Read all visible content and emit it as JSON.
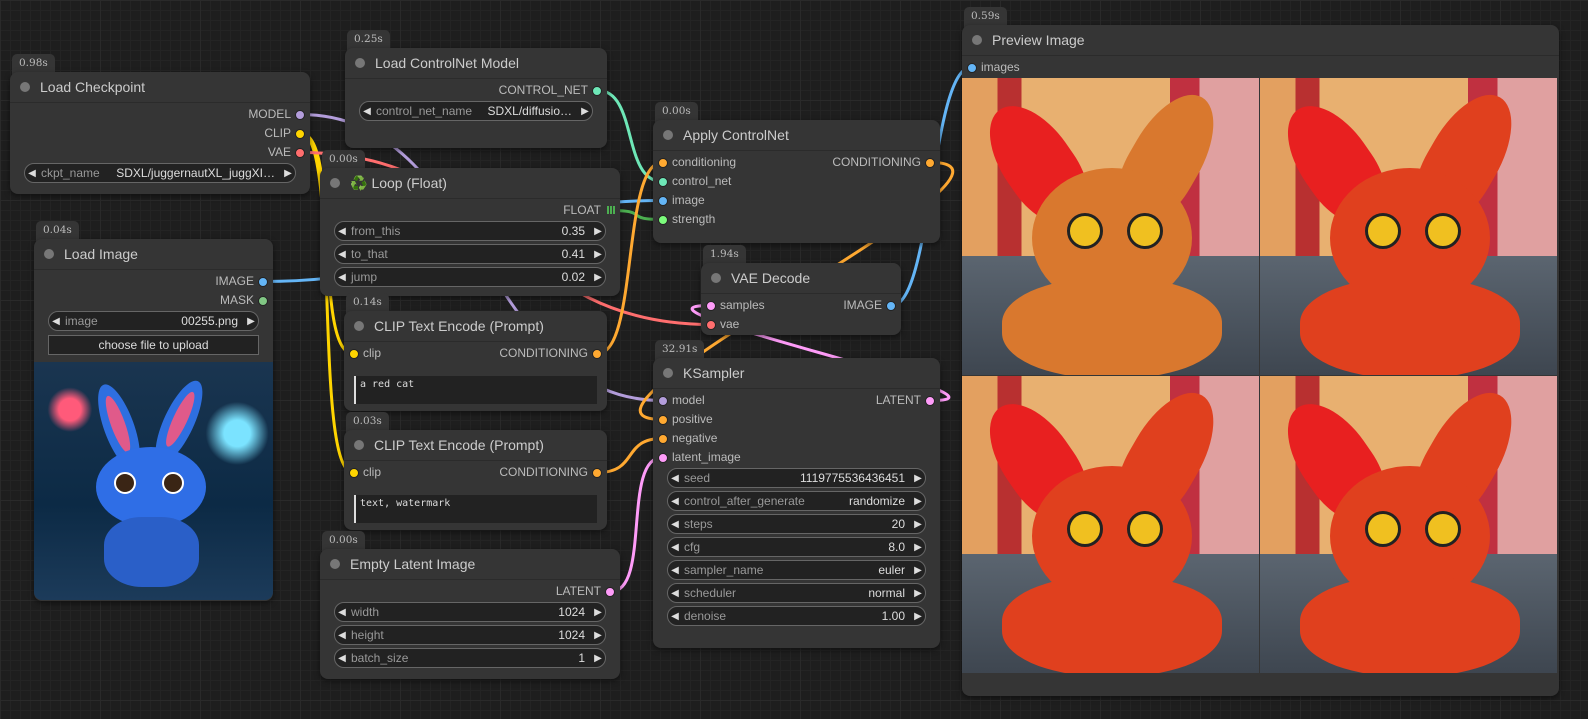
{
  "type_colors": {
    "MODEL": "#b39ddb",
    "CLIP": "#ffd500",
    "VAE": "#ff6e6e",
    "CONTROL_NET": "#6ee7b7",
    "IMAGE": "#64b5f6",
    "MASK": "#81c784",
    "FLOAT": "#4caf50",
    "CONDITIONING": "#ffa931",
    "LATENT": "#ff9cf9",
    "STRENGTH": "#7cfc7c"
  },
  "nodes": [
    {
      "id": "ckpt",
      "title": "Load Checkpoint",
      "time": "0.98s",
      "inputs": [],
      "outputs": [
        {
          "label": "MODEL",
          "type": "MODEL"
        },
        {
          "label": "CLIP",
          "type": "CLIP"
        },
        {
          "label": "VAE",
          "type": "VAE"
        }
      ],
      "widgets": [
        {
          "label": "ckpt_name",
          "value": "SDXL/juggernautXL_juggXI…"
        }
      ]
    },
    {
      "id": "cnload",
      "title": "Load ControlNet Model",
      "time": "0.25s",
      "inputs": [],
      "outputs": [
        {
          "label": "CONTROL_NET",
          "type": "CONTROL_NET"
        }
      ],
      "widgets": [
        {
          "label": "control_net_name",
          "value": "SDXL/diffusio…"
        }
      ]
    },
    {
      "id": "loop",
      "title": "Loop (Float)",
      "icon": "♻️",
      "time": "0.00s",
      "inputs": [],
      "outputs": [
        {
          "label": "FLOAT",
          "type": "FLOAT"
        }
      ],
      "widgets": [
        {
          "label": "from_this",
          "value": "0.35"
        },
        {
          "label": "to_that",
          "value": "0.41"
        },
        {
          "label": "jump",
          "value": "0.02"
        }
      ]
    },
    {
      "id": "loadimg",
      "title": "Load Image",
      "time": "0.04s",
      "inputs": [],
      "outputs": [
        {
          "label": "IMAGE",
          "type": "IMAGE"
        },
        {
          "label": "MASK",
          "type": "MASK"
        }
      ],
      "widgets": [
        {
          "label": "image",
          "value": "00255.png"
        }
      ],
      "button": "choose file to upload"
    },
    {
      "id": "apply",
      "title": "Apply ControlNet",
      "time": "0.00s",
      "inputs": [
        {
          "label": "conditioning",
          "type": "CONDITIONING"
        },
        {
          "label": "control_net",
          "type": "CONTROL_NET"
        },
        {
          "label": "image",
          "type": "IMAGE"
        },
        {
          "label": "strength",
          "type": "STRENGTH"
        }
      ],
      "outputs": [
        {
          "label": "CONDITIONING",
          "type": "CONDITIONING"
        }
      ],
      "widgets": []
    },
    {
      "id": "vae",
      "title": "VAE Decode",
      "time": "1.94s",
      "inputs": [
        {
          "label": "samples",
          "type": "LATENT"
        },
        {
          "label": "vae",
          "type": "VAE"
        }
      ],
      "outputs": [
        {
          "label": "IMAGE",
          "type": "IMAGE"
        }
      ],
      "widgets": []
    },
    {
      "id": "clip1",
      "title": "CLIP Text Encode (Prompt)",
      "time": "0.14s",
      "inputs": [
        {
          "label": "clip",
          "type": "CLIP"
        }
      ],
      "outputs": [
        {
          "label": "CONDITIONING",
          "type": "CONDITIONING"
        }
      ],
      "widgets": [],
      "text": "a red cat"
    },
    {
      "id": "clip2",
      "title": "CLIP Text Encode (Prompt)",
      "time": "0.03s",
      "inputs": [
        {
          "label": "clip",
          "type": "CLIP"
        }
      ],
      "outputs": [
        {
          "label": "CONDITIONING",
          "type": "CONDITIONING"
        }
      ],
      "widgets": [],
      "text": "text, watermark"
    },
    {
      "id": "ks",
      "title": "KSampler",
      "time": "32.91s",
      "inputs": [
        {
          "label": "model",
          "type": "MODEL"
        },
        {
          "label": "positive",
          "type": "CONDITIONING"
        },
        {
          "label": "negative",
          "type": "CONDITIONING"
        },
        {
          "label": "latent_image",
          "type": "LATENT"
        }
      ],
      "outputs": [
        {
          "label": "LATENT",
          "type": "LATENT"
        }
      ],
      "widgets": [
        {
          "label": "seed",
          "value": "1119775536436451"
        },
        {
          "label": "control_after_generate",
          "value": "randomize"
        },
        {
          "label": "steps",
          "value": "20"
        },
        {
          "label": "cfg",
          "value": "8.0"
        },
        {
          "label": "sampler_name",
          "value": "euler"
        },
        {
          "label": "scheduler",
          "value": "normal"
        },
        {
          "label": "denoise",
          "value": "1.00"
        }
      ]
    },
    {
      "id": "latent",
      "title": "Empty Latent Image",
      "time": "0.00s",
      "inputs": [],
      "outputs": [
        {
          "label": "LATENT",
          "type": "LATENT"
        }
      ],
      "widgets": [
        {
          "label": "width",
          "value": "1024"
        },
        {
          "label": "height",
          "value": "1024"
        },
        {
          "label": "batch_size",
          "value": "1"
        }
      ]
    },
    {
      "id": "preview",
      "title": "Preview Image",
      "time": "0.59s",
      "inputs": [
        {
          "label": "images",
          "type": "IMAGE"
        }
      ],
      "outputs": [],
      "widgets": []
    }
  ],
  "links": [
    [
      "ckpt",
      0,
      "ks",
      0
    ],
    [
      "ckpt",
      1,
      "clip1",
      0
    ],
    [
      "ckpt",
      1,
      "clip2",
      0
    ],
    [
      "ckpt",
      2,
      "vae",
      1
    ],
    [
      "cnload",
      0,
      "apply",
      1
    ],
    [
      "loadimg",
      0,
      "apply",
      2
    ],
    [
      "loop",
      0,
      "apply",
      3
    ],
    [
      "clip1",
      0,
      "apply",
      0
    ],
    [
      "apply",
      0,
      "ks",
      1
    ],
    [
      "clip2",
      0,
      "ks",
      2
    ],
    [
      "latent",
      0,
      "ks",
      3
    ],
    [
      "ks",
      0,
      "vae",
      0
    ],
    [
      "vae",
      0,
      "preview",
      0
    ]
  ]
}
